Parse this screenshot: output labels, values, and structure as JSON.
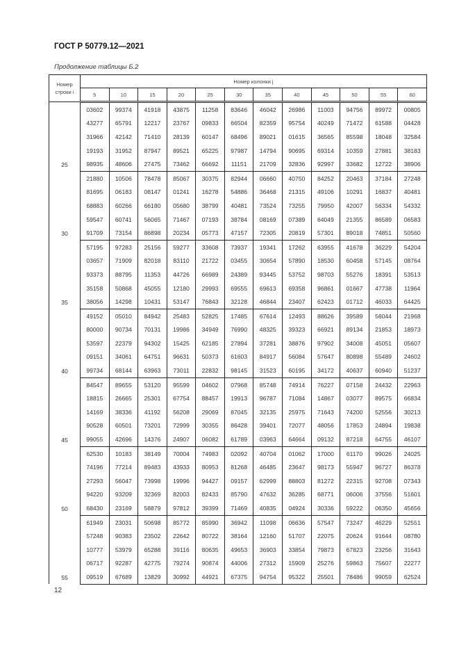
{
  "header": {
    "title": "ГОСТ Р 50779.12—2021"
  },
  "caption": "Продолжение таблицы Б.2",
  "table": {
    "row_header": "Номер строки i",
    "col_group_header": "Номер колонки j",
    "columns": [
      "5",
      "10",
      "15",
      "20",
      "25",
      "30",
      "35",
      "40",
      "45",
      "50",
      "55",
      "60"
    ],
    "blocks": [
      {
        "label": "25",
        "rows": [
          [
            "03602",
            "99374",
            "41918",
            "43875",
            "11258",
            "83646",
            "46042",
            "26986",
            "11003",
            "94756",
            "89972",
            "00805"
          ],
          [
            "43277",
            "65791",
            "12217",
            "23767",
            "09833",
            "66504",
            "82359",
            "95754",
            "40249",
            "71472",
            "61588",
            "04428"
          ],
          [
            "31966",
            "42142",
            "71410",
            "28139",
            "60147",
            "68496",
            "89021",
            "01615",
            "36565",
            "85598",
            "18048",
            "32584"
          ],
          [
            "19193",
            "31952",
            "87947",
            "89521",
            "65225",
            "97987",
            "14794",
            "90695",
            "69314",
            "10359",
            "27881",
            "38183"
          ],
          [
            "98935",
            "48606",
            "27475",
            "73462",
            "66692",
            "11151",
            "21709",
            "32836",
            "92997",
            "33682",
            "12722",
            "38906"
          ]
        ]
      },
      {
        "label": "30",
        "rows": [
          [
            "21880",
            "10506",
            "78478",
            "85067",
            "30375",
            "82944",
            "06660",
            "40750",
            "84252",
            "20463",
            "37184",
            "27248"
          ],
          [
            "81695",
            "06183",
            "08147",
            "01241",
            "16278",
            "54886",
            "36468",
            "21315",
            "49106",
            "10291",
            "16837",
            "40481"
          ],
          [
            "68883",
            "60266",
            "66180",
            "05680",
            "38799",
            "40481",
            "73524",
            "73255",
            "79950",
            "42007",
            "56334",
            "54332"
          ],
          [
            "59547",
            "60741",
            "56065",
            "71467",
            "07193",
            "38784",
            "08169",
            "07389",
            "64049",
            "21355",
            "86589",
            "06583"
          ],
          [
            "91709",
            "73154",
            "86898",
            "20234",
            "05773",
            "47157",
            "72305",
            "20819",
            "57301",
            "89018",
            "74851",
            "50560"
          ]
        ]
      },
      {
        "label": "35",
        "rows": [
          [
            "57195",
            "97283",
            "25156",
            "59277",
            "33608",
            "73937",
            "19341",
            "17262",
            "63955",
            "41678",
            "36229",
            "54204"
          ],
          [
            "03657",
            "71909",
            "82018",
            "83110",
            "21722",
            "03455",
            "30654",
            "57890",
            "18530",
            "60458",
            "57145",
            "08764"
          ],
          [
            "93373",
            "88795",
            "11353",
            "44726",
            "66989",
            "24389",
            "93445",
            "53752",
            "98703",
            "55276",
            "18391",
            "53513"
          ],
          [
            "35158",
            "50868",
            "45055",
            "12180",
            "29993",
            "69555",
            "69613",
            "69358",
            "96861",
            "01667",
            "47738",
            "11964"
          ],
          [
            "38056",
            "14298",
            "10431",
            "53147",
            "76843",
            "32128",
            "46844",
            "23407",
            "62423",
            "01712",
            "46033",
            "64425"
          ]
        ]
      },
      {
        "label": "40",
        "rows": [
          [
            "49152",
            "05010",
            "84942",
            "25483",
            "52825",
            "17485",
            "67614",
            "12493",
            "88626",
            "39589",
            "56044",
            "21968"
          ],
          [
            "80000",
            "90734",
            "70131",
            "19986",
            "34949",
            "76990",
            "48325",
            "39323",
            "66921",
            "89134",
            "21853",
            "18973"
          ],
          [
            "53597",
            "22379",
            "94302",
            "15425",
            "62185",
            "27894",
            "37281",
            "38876",
            "97902",
            "34008",
            "45051",
            "05607"
          ],
          [
            "09151",
            "34061",
            "64751",
            "96631",
            "50373",
            "61603",
            "84917",
            "56084",
            "57647",
            "80898",
            "55489",
            "24602"
          ],
          [
            "99734",
            "68144",
            "63963",
            "73011",
            "22832",
            "98145",
            "31523",
            "60195",
            "34172",
            "40637",
            "60940",
            "51237"
          ]
        ]
      },
      {
        "label": "45",
        "rows": [
          [
            "84547",
            "89655",
            "53120",
            "95599",
            "04602",
            "07968",
            "85748",
            "74914",
            "76227",
            "07158",
            "24432",
            "22963"
          ],
          [
            "18815",
            "26665",
            "25301",
            "67754",
            "88457",
            "19913",
            "96787",
            "71084",
            "14867",
            "03077",
            "89575",
            "66834"
          ],
          [
            "14169",
            "38336",
            "41192",
            "56208",
            "29069",
            "87045",
            "32135",
            "25975",
            "71643",
            "74200",
            "52556",
            "30213"
          ],
          [
            "90528",
            "60501",
            "73201",
            "72999",
            "30355",
            "86428",
            "39401",
            "72077",
            "48056",
            "17853",
            "24894",
            "19838"
          ],
          [
            "99055",
            "42696",
            "14376",
            "24907",
            "06082",
            "61789",
            "03963",
            "64664",
            "09132",
            "87218",
            "64755",
            "46107"
          ]
        ]
      },
      {
        "label": "50",
        "rows": [
          [
            "62530",
            "10183",
            "38149",
            "70004",
            "74983",
            "02092",
            "40704",
            "01062",
            "17000",
            "61170",
            "99026",
            "24025"
          ],
          [
            "74196",
            "77214",
            "89483",
            "43933",
            "80953",
            "81268",
            "46485",
            "23647",
            "98173",
            "55947",
            "96727",
            "86378"
          ],
          [
            "27293",
            "56047",
            "73998",
            "19996",
            "94427",
            "09157",
            "62999",
            "88803",
            "81272",
            "22315",
            "92708",
            "07343"
          ],
          [
            "94220",
            "93209",
            "32369",
            "82003",
            "82433",
            "85790",
            "47632",
            "36285",
            "68771",
            "06006",
            "37556",
            "51601"
          ],
          [
            "68430",
            "23169",
            "58879",
            "97812",
            "39399",
            "71469",
            "40835",
            "04924",
            "30336",
            "59222",
            "06350",
            "45656"
          ]
        ]
      },
      {
        "label": "55",
        "rows": [
          [
            "61949",
            "23031",
            "50698",
            "85772",
            "85990",
            "36942",
            "11098",
            "06636",
            "57547",
            "73247",
            "46229",
            "52551"
          ],
          [
            "57248",
            "90383",
            "23502",
            "22642",
            "80722",
            "38164",
            "12160",
            "51707",
            "22075",
            "20624",
            "91644",
            "08780"
          ],
          [
            "10777",
            "53979",
            "65288",
            "39116",
            "80635",
            "49653",
            "36903",
            "33854",
            "79873",
            "67823",
            "23256",
            "31643"
          ],
          [
            "06717",
            "92287",
            "42775",
            "79274",
            "90874",
            "44006",
            "27312",
            "15909",
            "25276",
            "59863",
            "75607",
            "22277"
          ],
          [
            "09519",
            "67689",
            "13829",
            "30992",
            "44921",
            "67375",
            "94754",
            "95322",
            "25501",
            "78486",
            "99059",
            "62524"
          ]
        ]
      }
    ]
  },
  "footer": {
    "page_number": "12"
  }
}
